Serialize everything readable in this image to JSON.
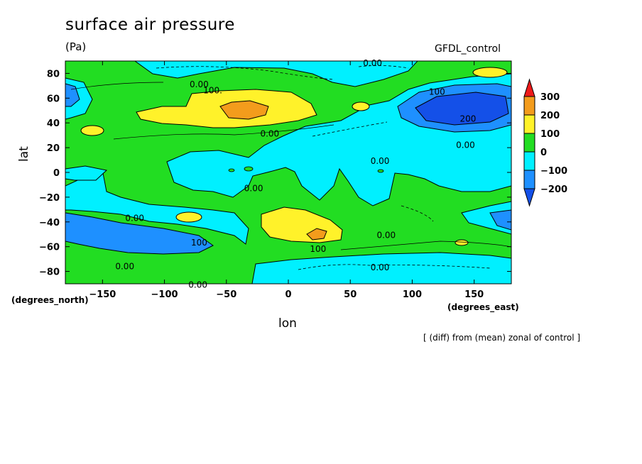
{
  "chart_data": {
    "type": "contour",
    "title": "surface air pressure",
    "units": "(Pa)",
    "model": "GFDL_control",
    "caption": "[ (diff) from (mean) zonal of control ]",
    "xlabel": "lon",
    "ylabel": "lat",
    "xunits": "(degrees_east)",
    "yunits": "(degrees_north)",
    "xlim": [
      -180,
      180
    ],
    "ylim": [
      -90,
      90
    ],
    "xticks": [
      -150,
      -100,
      -50,
      0,
      50,
      100,
      150
    ],
    "yticks": [
      80,
      60,
      40,
      20,
      0,
      -20,
      -40,
      -60,
      -80
    ],
    "colorbar": {
      "levels": [
        300,
        200,
        100,
        0,
        -100,
        -200
      ],
      "colors": [
        "#ee1a1a",
        "#f39c1c",
        "#fff22a",
        "#22dd22",
        "#00f0ff",
        "#1e90ff",
        "#1450e8"
      ]
    },
    "contour_labels": [
      {
        "text": "0.00",
        "lon": 68,
        "lat": 87
      },
      {
        "text": "0.00",
        "lon": -72,
        "lat": 70
      },
      {
        "text": "100.",
        "lon": -61,
        "lat": 65
      },
      {
        "text": "100",
        "lon": 120,
        "lat": 64
      },
      {
        "text": "200",
        "lon": 145,
        "lat": 42
      },
      {
        "text": "0.00",
        "lon": -15,
        "lat": 30
      },
      {
        "text": "0.00",
        "lon": 143,
        "lat": 21
      },
      {
        "text": "0.00",
        "lon": 74,
        "lat": 8
      },
      {
        "text": "0.00",
        "lon": -28,
        "lat": -14
      },
      {
        "text": "0.00",
        "lon": -124,
        "lat": -38
      },
      {
        "text": "100",
        "lon": -72,
        "lat": -58
      },
      {
        "text": "0.00",
        "lon": 79,
        "lat": -52
      },
      {
        "text": "100",
        "lon": 24,
        "lat": -63
      },
      {
        "text": "0.00",
        "lon": -132,
        "lat": -77
      },
      {
        "text": "0.00",
        "lon": 74,
        "lat": -78
      },
      {
        "text": "0.00",
        "lon": -73,
        "lat": -92
      }
    ]
  }
}
